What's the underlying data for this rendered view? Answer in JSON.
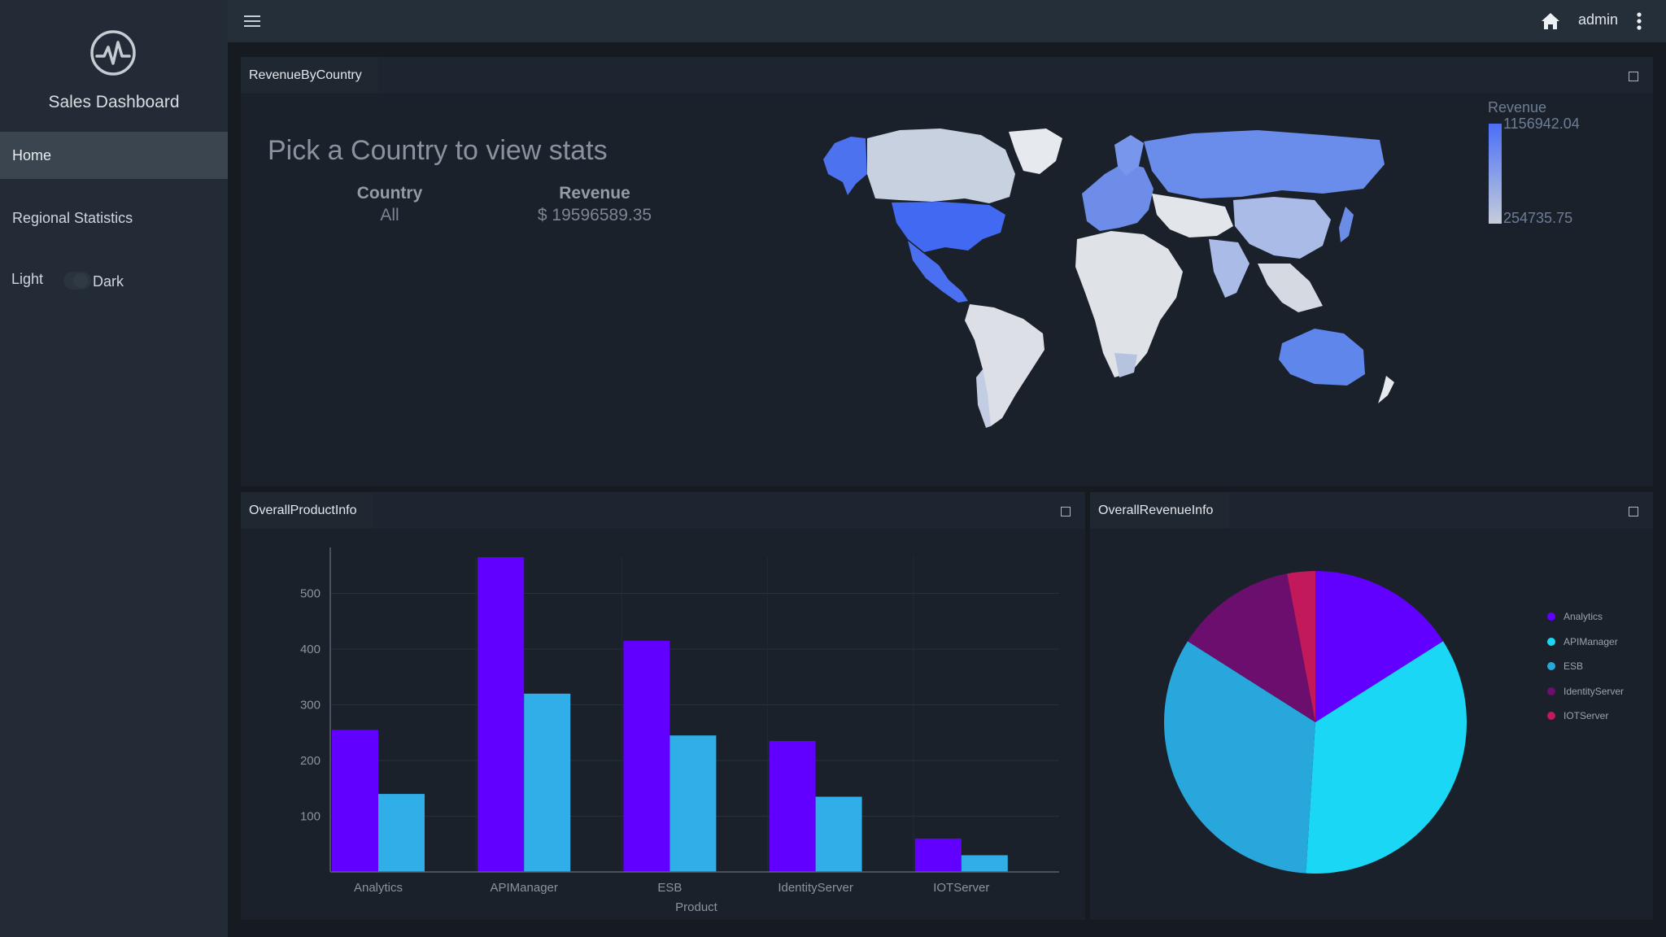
{
  "sidebar": {
    "app_title": "Sales Dashboard",
    "logo_icon": "activity-pulse-icon",
    "nav": [
      {
        "label": "Home",
        "active": true
      },
      {
        "label": "Regional Statistics",
        "active": false
      }
    ],
    "theme_toggle": {
      "light_label": "Light",
      "dark_label": "Dark",
      "selected": "Dark"
    }
  },
  "topbar": {
    "menu_icon": "hamburger-menu-icon",
    "home_icon": "home-icon",
    "username": "admin",
    "more_icon": "kebab-menu-icon"
  },
  "widgets": {
    "revenue_by_country": {
      "title": "RevenueByCountry",
      "prompt": "Pick a Country to view stats",
      "country_label": "Country",
      "country_value": "All",
      "revenue_label": "Revenue",
      "revenue_value": "$ 19596589.35",
      "legend": {
        "title": "Revenue",
        "max": "1156942.04",
        "min": "254735.75"
      }
    },
    "overall_product_info": {
      "title": "OverallProductInfo"
    },
    "overall_revenue_info": {
      "title": "OverallRevenueInfo"
    }
  },
  "colors": {
    "background": "#161b22",
    "sidebar": "#232c36",
    "panel": "#1a212b",
    "bar_series_1": "#6200ff",
    "bar_series_2": "#2faee8",
    "pie_analytics": "#6200ff",
    "pie_apimanager": "#1ad8f5",
    "pie_esb": "#28a7dd",
    "pie_identityserver": "#6b0e6e",
    "pie_iotserver": "#c1195a"
  },
  "chart_data": [
    {
      "type": "bar",
      "xlabel": "Product",
      "ylabel": "",
      "categories": [
        "Analytics",
        "APIManager",
        "ESB",
        "IdentityServer",
        "IOTServer"
      ],
      "series": [
        {
          "values": [
            255,
            565,
            415,
            235,
            60
          ],
          "color": "#6200ff"
        },
        {
          "values": [
            140,
            320,
            245,
            135,
            30
          ],
          "color": "#2faee8"
        }
      ],
      "yticks": [
        100,
        200,
        300,
        400,
        500
      ],
      "ylim": [
        0,
        565
      ],
      "grid": true
    },
    {
      "type": "pie",
      "categories": [
        "Analytics",
        "APIManager",
        "ESB",
        "IdentityServer",
        "IOTServer"
      ],
      "values": [
        16,
        35,
        33,
        13,
        3
      ],
      "colors": [
        "#6200ff",
        "#1ad8f5",
        "#28a7dd",
        "#6b0e6e",
        "#c1195a"
      ],
      "legend": "right"
    }
  ]
}
